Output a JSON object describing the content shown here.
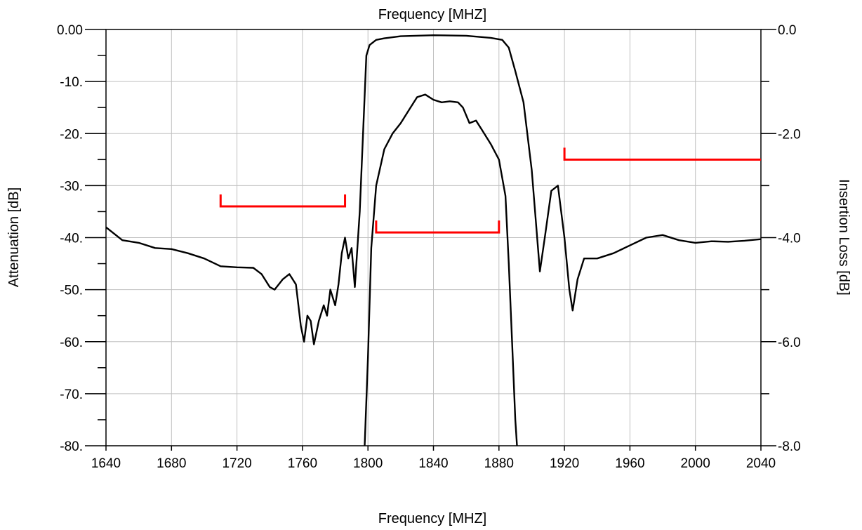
{
  "chart_data": {
    "type": "line",
    "title": "Frequency [MHZ]",
    "xlabel": "Frequency [MHZ]",
    "ylabel": "Attenuation [dB]",
    "ylabel_right": "Insertion Loss [dB]",
    "xlim": [
      1640,
      2040
    ],
    "ylim": [
      -80,
      0
    ],
    "ylim_right": [
      -8,
      0
    ],
    "grid": true,
    "x_ticks": [
      1640,
      1680,
      1720,
      1760,
      1800,
      1840,
      1880,
      1920,
      1960,
      2000,
      2040
    ],
    "x_tick_labels": [
      "1640",
      "1680",
      "1720",
      "1760",
      "1800",
      "1840",
      "1880",
      "1920",
      "1960",
      "2000",
      "2040"
    ],
    "y_ticks": [
      0,
      -10,
      -20,
      -30,
      -40,
      -50,
      -60,
      -70,
      -80
    ],
    "y_tick_labels": [
      "0.00",
      "-10.",
      "-20.",
      "-30.",
      "-40.",
      "-50.",
      "-60.",
      "-70.",
      "-80."
    ],
    "y_right_ticks": [
      0,
      -2,
      -4,
      -6,
      -8
    ],
    "y_right_tick_labels": [
      "0.0",
      "-2.0",
      "-4.0",
      "-6.0",
      "-8.0"
    ],
    "colors": {
      "curve": "#000000",
      "mask": "#ff0000",
      "grid": "#c0c0c0"
    },
    "series": [
      {
        "axis": "left",
        "x": [
          1640,
          1650,
          1660,
          1670,
          1680,
          1690,
          1700,
          1710,
          1720,
          1730,
          1735,
          1740,
          1743,
          1748,
          1752,
          1756,
          1759,
          1761,
          1763,
          1765,
          1767,
          1770,
          1773,
          1775,
          1777,
          1780,
          1782,
          1784,
          1786,
          1788,
          1790,
          1792,
          1795,
          1797,
          1799,
          1801,
          1805,
          1810,
          1820,
          1840,
          1860,
          1875,
          1882,
          1886,
          1890,
          1895,
          1900,
          1905,
          1908,
          1912,
          1916,
          1920,
          1923,
          1925,
          1928,
          1932,
          1940,
          1950,
          1960,
          1970,
          1980,
          1990,
          2000,
          2010,
          2020,
          2030,
          2040
        ],
        "y": [
          -38,
          -40.5,
          -41,
          -42,
          -42.2,
          -43,
          -44,
          -45.5,
          -45.7,
          -45.8,
          -47,
          -49.5,
          -50,
          -48,
          -47,
          -49,
          -57,
          -60,
          -55,
          -56,
          -60.5,
          -56,
          -53,
          -55,
          -50,
          -53,
          -49,
          -43,
          -40,
          -44,
          -42,
          -49.5,
          -35,
          -20,
          -5,
          -3,
          -2,
          -1.7,
          -1.3,
          -1.1,
          -1.2,
          -1.6,
          -2,
          -3.5,
          -8,
          -14,
          -27,
          -46.5,
          -40,
          -31,
          -30,
          -40,
          -50,
          -54,
          -48,
          -44,
          -44,
          -43,
          -41.5,
          -40,
          -39.5,
          -40.5,
          -41,
          -40.7,
          -40.8,
          -40.6,
          -40.3
        ]
      },
      {
        "axis": "right",
        "x": [
          1798,
          1800,
          1802,
          1805,
          1810,
          1815,
          1820,
          1825,
          1830,
          1835,
          1840,
          1845,
          1850,
          1855,
          1858,
          1862,
          1866,
          1870,
          1875,
          1880,
          1884,
          1886,
          1888,
          1890,
          1891
        ],
        "y": [
          -8,
          -6.3,
          -4.2,
          -3,
          -2.3,
          -2,
          -1.8,
          -1.55,
          -1.3,
          -1.25,
          -1.35,
          -1.4,
          -1.38,
          -1.4,
          -1.5,
          -1.8,
          -1.75,
          -1.95,
          -2.2,
          -2.5,
          -3.2,
          -4.5,
          -6,
          -7.5,
          -8
        ]
      }
    ],
    "masks": [
      {
        "x": [
          1710,
          1786
        ],
        "y": -34
      },
      {
        "x": [
          1805,
          1880
        ],
        "y": -39
      },
      {
        "x": [
          1920,
          2040
        ],
        "y": -25
      }
    ]
  }
}
